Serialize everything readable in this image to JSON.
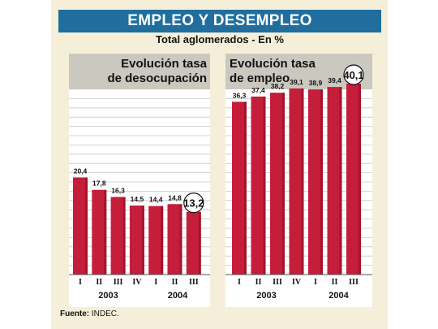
{
  "header": {
    "title": "EMPLEO Y DESEMPLEO",
    "subtitle": "Total aglomerados - En %"
  },
  "colors": {
    "bar": "#c41e3a",
    "bar_dark": "#8a0d22",
    "title_bg": "#1f6e9e",
    "panel_bg": "#f5efd9",
    "header_bg": "#cac8bf"
  },
  "chart_data": [
    {
      "type": "bar",
      "title_line1": "Evolución tasa",
      "title_line2": "de desocupación",
      "categories": [
        "I",
        "II",
        "III",
        "IV",
        "I",
        "II",
        "III"
      ],
      "values": [
        20.4,
        17.8,
        16.3,
        14.5,
        14.4,
        14.8,
        13.2
      ],
      "value_labels": [
        "20,4",
        "17,8",
        "16,3",
        "14,5",
        "14,4",
        "14,8",
        "13,2"
      ],
      "highlight_index": 6,
      "years": [
        "2003",
        "2004"
      ],
      "ylim": [
        0,
        50
      ]
    },
    {
      "type": "bar",
      "title_line1": "Evolución tasa",
      "title_line2": "de empleo",
      "categories": [
        "I",
        "II",
        "III",
        "IV",
        "I",
        "II",
        "III"
      ],
      "values": [
        36.3,
        37.4,
        38.2,
        39.1,
        38.9,
        39.4,
        40.1
      ],
      "value_labels": [
        "36,3",
        "37,4",
        "38,2",
        "39,1",
        "38,9",
        "39,4",
        "40,1"
      ],
      "highlight_index": 6,
      "years": [
        "2003",
        "2004"
      ],
      "ylim": [
        0,
        50
      ]
    }
  ],
  "footer": {
    "source_label": "Fuente:",
    "source_value": "INDEC."
  }
}
